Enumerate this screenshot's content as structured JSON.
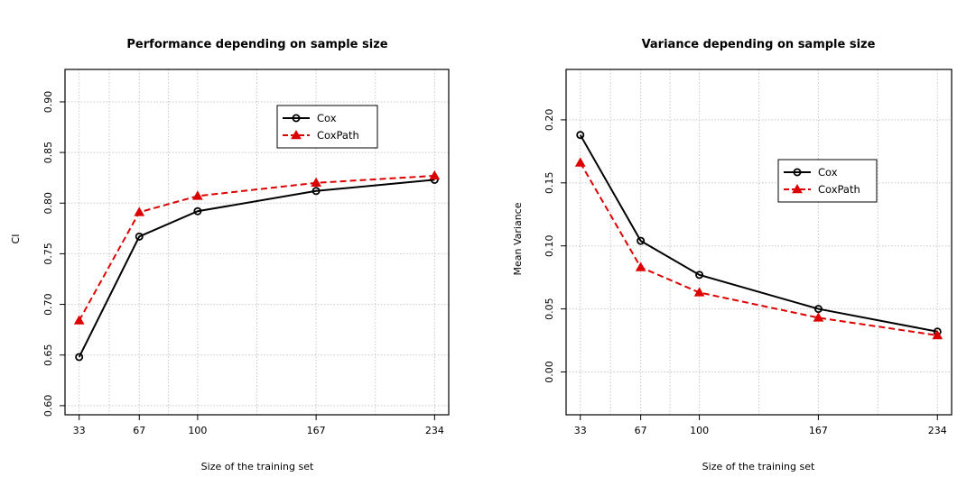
{
  "chart_data": [
    {
      "type": "line",
      "title": "Performance depending on sample size",
      "xlabel": "Size of the training set",
      "ylabel": "CI",
      "x": [
        33,
        67,
        100,
        167,
        234
      ],
      "xticks": [
        "33",
        "67",
        "100",
        "167",
        "234"
      ],
      "yticks": [
        "0.60",
        "0.65",
        "0.70",
        "0.75",
        "0.80",
        "0.85",
        "0.90"
      ],
      "xlim": [
        25,
        242
      ],
      "ylim": [
        0.591,
        0.932
      ],
      "grid": true,
      "legend_position": "top-right",
      "series": [
        {
          "name": "Cox",
          "values": [
            0.648,
            0.767,
            0.792,
            0.812,
            0.823
          ],
          "color": "#000000",
          "dash": "solid",
          "marker": "circle"
        },
        {
          "name": "CoxPath",
          "values": [
            0.684,
            0.791,
            0.807,
            0.82,
            0.827
          ],
          "color": "#dd0000",
          "dash": "dashed",
          "marker": "triangle"
        }
      ]
    },
    {
      "type": "line",
      "title": "Variance depending on sample size",
      "xlabel": "Size of the training set",
      "ylabel": "Mean Variance",
      "x": [
        33,
        67,
        100,
        167,
        234
      ],
      "xticks": [
        "33",
        "67",
        "100",
        "167",
        "234"
      ],
      "yticks": [
        "0.00",
        "0.05",
        "0.10",
        "0.15",
        "0.20"
      ],
      "xlim": [
        25,
        242
      ],
      "ylim": [
        -0.034,
        0.24
      ],
      "grid": true,
      "legend_position": "top-right",
      "series": [
        {
          "name": "Cox",
          "values": [
            0.188,
            0.104,
            0.077,
            0.05,
            0.032
          ],
          "color": "#000000",
          "dash": "solid",
          "marker": "circle"
        },
        {
          "name": "CoxPath",
          "values": [
            0.166,
            0.083,
            0.063,
            0.043,
            0.029
          ],
          "color": "#dd0000",
          "dash": "dashed",
          "marker": "triangle"
        }
      ]
    }
  ]
}
